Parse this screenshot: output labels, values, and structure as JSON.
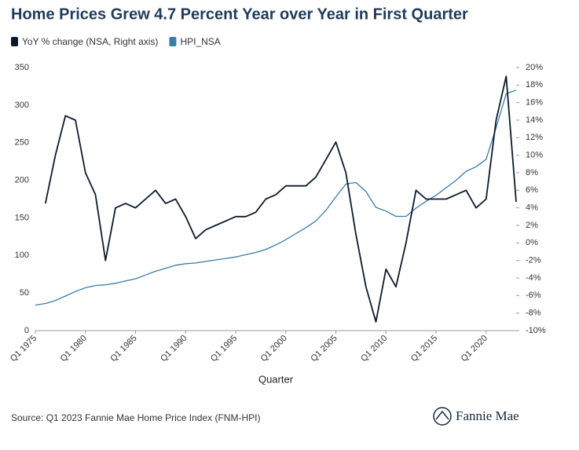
{
  "chart_data": {
    "type": "line",
    "title": "Home Prices Grew 4.7 Percent Year over Year in First Quarter",
    "x_label": "Quarter",
    "x": [
      1975,
      1976,
      1977,
      1978,
      1979,
      1980,
      1981,
      1982,
      1983,
      1984,
      1985,
      1986,
      1987,
      1988,
      1989,
      1990,
      1991,
      1992,
      1993,
      1994,
      1995,
      1996,
      1997,
      1998,
      1999,
      2000,
      2001,
      2002,
      2003,
      2004,
      2005,
      2006,
      2007,
      2008,
      2009,
      2010,
      2011,
      2012,
      2013,
      2014,
      2015,
      2016,
      2017,
      2018,
      2019,
      2020,
      2021,
      2022,
      2023
    ],
    "xlim": [
      1975,
      2023
    ],
    "xticks": [
      {
        "value": 1975,
        "label": "Q1 1975"
      },
      {
        "value": 1980,
        "label": "Q1 1980"
      },
      {
        "value": 1985,
        "label": "Q1 1985"
      },
      {
        "value": 1990,
        "label": "Q1 1990"
      },
      {
        "value": 1995,
        "label": "Q1 1995"
      },
      {
        "value": 2000,
        "label": "Q1 2000"
      },
      {
        "value": 2005,
        "label": "Q1 2005"
      },
      {
        "value": 2010,
        "label": "Q1 2010"
      },
      {
        "value": 2015,
        "label": "Q1 2015"
      },
      {
        "value": 2020,
        "label": "Q1 2020"
      }
    ],
    "ylim": [
      0,
      350
    ],
    "yticks": [
      0,
      50,
      100,
      150,
      200,
      250,
      300,
      350
    ],
    "y2lim": [
      -10,
      20
    ],
    "y2ticks": [
      {
        "value": -10,
        "label": "-10%"
      },
      {
        "value": -8,
        "label": "-8%"
      },
      {
        "value": -6,
        "label": "-6%"
      },
      {
        "value": -4,
        "label": "-4%"
      },
      {
        "value": -2,
        "label": "-2%"
      },
      {
        "value": 0,
        "label": "0%"
      },
      {
        "value": 2,
        "label": "2%"
      },
      {
        "value": 4,
        "label": "4%"
      },
      {
        "value": 6,
        "label": "6%"
      },
      {
        "value": 8,
        "label": "8%"
      },
      {
        "value": 10,
        "label": "10%"
      },
      {
        "value": 12,
        "label": "12%"
      },
      {
        "value": 14,
        "label": "14%"
      },
      {
        "value": 16,
        "label": "16%"
      },
      {
        "value": 18,
        "label": "18%"
      },
      {
        "value": 20,
        "label": "20%"
      }
    ],
    "series": [
      {
        "name": "YoY % change (NSA, Right axis)",
        "color": "#0d1a2b",
        "axis": "y2",
        "values": [
          null,
          4.5,
          10,
          14.5,
          14,
          8,
          5.5,
          -2,
          4,
          4.5,
          4,
          5,
          6,
          4.5,
          5,
          3,
          0.5,
          1.5,
          2,
          2.5,
          3,
          3,
          3.5,
          5,
          5.5,
          6.5,
          6.5,
          6.5,
          7.5,
          9.5,
          11.5,
          8,
          1,
          -5,
          -9,
          -3,
          -5,
          0,
          6,
          5,
          5,
          5,
          5.5,
          6,
          4,
          5,
          14,
          19,
          4.7
        ]
      },
      {
        "name": "HPI_NSA",
        "color": "#3a7ca5",
        "values": [
          34,
          36,
          40,
          46,
          52,
          57,
          60,
          61,
          63,
          66,
          69,
          74,
          79,
          83,
          87,
          89,
          90,
          92,
          94,
          96,
          98,
          101,
          104,
          108,
          114,
          121,
          129,
          137,
          146,
          160,
          178,
          195,
          197,
          185,
          164,
          159,
          152,
          152,
          163,
          172,
          180,
          190,
          200,
          212,
          218,
          228,
          270,
          315,
          320
        ]
      }
    ]
  },
  "footer": {
    "source": "Source: Q1 2023 Fannie Mae Home Price Index (FNM-HPI)",
    "brand": "Fannie Mae"
  }
}
